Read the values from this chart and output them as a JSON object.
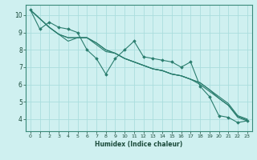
{
  "xlabel": "Humidex (Indice chaleur)",
  "xlim": [
    -0.5,
    23.5
  ],
  "ylim": [
    3.3,
    10.6
  ],
  "xticks": [
    0,
    1,
    2,
    3,
    4,
    5,
    6,
    7,
    8,
    9,
    10,
    11,
    12,
    13,
    14,
    15,
    16,
    17,
    18,
    19,
    20,
    21,
    22,
    23
  ],
  "yticks": [
    4,
    5,
    6,
    7,
    8,
    9,
    10
  ],
  "background_color": "#cff0f0",
  "grid_color": "#aadddd",
  "line_color": "#2a7d6e",
  "jagged_line": [
    10.3,
    9.2,
    9.6,
    9.3,
    9.2,
    9.0,
    8.0,
    7.5,
    6.6,
    7.5,
    8.0,
    8.5,
    7.6,
    7.5,
    7.4,
    7.3,
    7.0,
    7.3,
    5.9,
    5.3,
    4.2,
    4.1,
    3.8,
    3.9
  ],
  "straight_lines": [
    [
      10.3,
      9.8,
      9.3,
      8.9,
      8.5,
      8.7,
      8.7,
      8.3,
      7.9,
      7.8,
      7.5,
      7.3,
      7.1,
      6.9,
      6.8,
      6.6,
      6.5,
      6.3,
      6.0,
      5.6,
      5.2,
      4.8,
      4.1,
      3.9
    ],
    [
      10.3,
      9.8,
      9.3,
      8.9,
      8.7,
      8.7,
      8.7,
      8.4,
      8.0,
      7.8,
      7.5,
      7.3,
      7.1,
      6.9,
      6.8,
      6.6,
      6.5,
      6.3,
      6.1,
      5.7,
      5.2,
      4.8,
      4.15,
      3.95
    ],
    [
      10.3,
      9.8,
      9.3,
      8.9,
      8.7,
      8.7,
      8.7,
      8.4,
      8.0,
      7.8,
      7.5,
      7.3,
      7.1,
      6.9,
      6.8,
      6.6,
      6.5,
      6.3,
      6.1,
      5.7,
      5.3,
      4.9,
      4.2,
      4.0
    ]
  ]
}
